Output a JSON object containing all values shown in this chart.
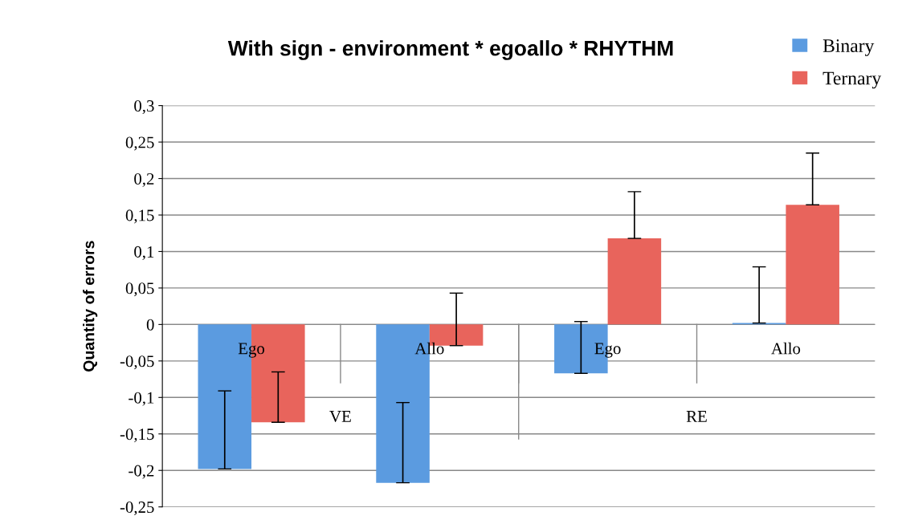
{
  "chart_data": {
    "type": "bar",
    "title": "With sign - environment * egoallo * RHYTHM",
    "ylabel": "Quantity of errors",
    "categories": [
      "Ego",
      "Allo",
      "Ego",
      "Allo"
    ],
    "series": [
      {
        "name": "Binary",
        "color": "#5b9be0",
        "values": [
          -0.198,
          -0.217,
          -0.067,
          0.002
        ],
        "errors": [
          [
            -0.198,
            -0.091
          ],
          [
            -0.217,
            -0.107
          ],
          [
            -0.067,
            0.004
          ],
          [
            0.002,
            0.079
          ]
        ]
      },
      {
        "name": "Ternary",
        "color": "#e8645c",
        "values": [
          -0.134,
          -0.029,
          0.118,
          0.164
        ],
        "errors": [
          [
            -0.134,
            -0.065
          ],
          [
            -0.029,
            0.043
          ],
          [
            0.118,
            0.182
          ],
          [
            0.164,
            0.235
          ]
        ]
      }
    ],
    "annotations": [
      "VE",
      "RE"
    ],
    "ylim": [
      -0.25,
      0.3
    ],
    "yticks": [
      {
        "value": -0.25,
        "label": "-0,25"
      },
      {
        "value": -0.2,
        "label": "-0,2"
      },
      {
        "value": -0.15,
        "label": "-0,15"
      },
      {
        "value": -0.1,
        "label": "-0,1"
      },
      {
        "value": -0.05,
        "label": "-0,05"
      },
      {
        "value": 0,
        "label": "0"
      },
      {
        "value": 0.05,
        "label": "0,05"
      },
      {
        "value": 0.1,
        "label": "0,1"
      },
      {
        "value": 0.15,
        "label": "0,15"
      },
      {
        "value": 0.2,
        "label": "0,2"
      },
      {
        "value": 0.25,
        "label": "0,25"
      },
      {
        "value": 0.3,
        "label": "0,3"
      }
    ],
    "grid": "y",
    "legend": "top right"
  }
}
